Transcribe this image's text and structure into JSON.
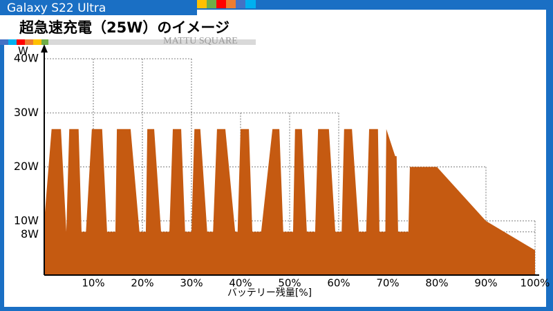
{
  "header": {
    "device": "Galaxy S22 Ultra",
    "title": "超急速充電（25W）のイメージ",
    "watermark": "MATTU SQUARE"
  },
  "chart_data": {
    "type": "area",
    "color": "#c55a11",
    "y_unit": "W",
    "x_label": "バッテリー残量[%]",
    "x": [
      0,
      1.5,
      3.4,
      4.5,
      5.1,
      7,
      7.6,
      8.5,
      9.7,
      11.8,
      12.8,
      14.5,
      14.8,
      17.6,
      19.4,
      20.7,
      21,
      22.4,
      23.8,
      25.5,
      26.2,
      27.9,
      28.7,
      30,
      30.6,
      31.8,
      33.2,
      34.4,
      35.2,
      36.9,
      38.9,
      39.4,
      40,
      41.7,
      42.4,
      44.2,
      46.5,
      47.9,
      48.7,
      50.7,
      51.1,
      52.5,
      53.5,
      55.2,
      55.8,
      58,
      59.3,
      60.6,
      61.1,
      62.7,
      64.1,
      65.6,
      66.2,
      68,
      68.3,
      69.5,
      69.7,
      71.5,
      71.8,
      72.1,
      74.2,
      74.5,
      80,
      90,
      100
    ],
    "values": [
      10,
      27,
      27,
      8,
      27,
      27,
      8,
      8,
      27,
      27,
      8,
      8,
      27,
      27,
      8,
      8,
      27,
      27,
      8,
      8,
      27,
      27,
      8,
      8,
      27,
      27,
      8,
      8,
      27,
      27,
      8,
      8,
      27,
      27,
      8,
      8,
      27,
      27,
      8,
      8,
      27,
      27,
      8,
      8,
      27,
      27,
      8,
      8,
      27,
      27,
      8,
      8,
      27,
      27,
      8,
      8,
      27,
      22,
      22,
      8,
      8,
      20,
      20,
      10,
      4.6
    ],
    "xlim": [
      0,
      100
    ],
    "xticks": [
      {
        "value": 10,
        "label": "10%"
      },
      {
        "value": 20,
        "label": "20%"
      },
      {
        "value": 30,
        "label": "30%"
      },
      {
        "value": 40,
        "label": "40%"
      },
      {
        "value": 50,
        "label": "50%"
      },
      {
        "value": 60,
        "label": "60%"
      },
      {
        "value": 70,
        "label": "70%"
      },
      {
        "value": 80,
        "label": "80%"
      },
      {
        "value": 90,
        "label": "90%"
      },
      {
        "value": 100,
        "label": "100%"
      }
    ],
    "ylim": [
      0,
      40
    ],
    "yticks": [
      {
        "value": 8,
        "label": "8W"
      },
      {
        "value": 10,
        "label": "10W"
      },
      {
        "value": 20,
        "label": "20W"
      },
      {
        "value": 30,
        "label": "30W"
      },
      {
        "value": 40,
        "label": "40W"
      }
    ],
    "grid": true
  }
}
